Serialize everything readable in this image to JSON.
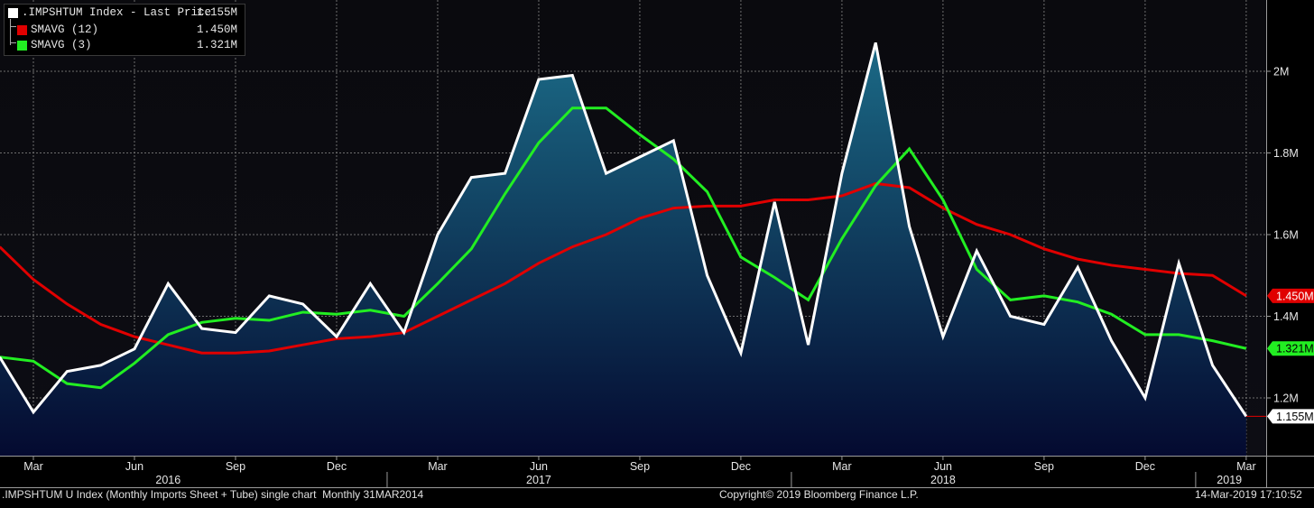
{
  "legend": [
    {
      "name": ".IMPSHTUM Index - Last Price",
      "value": "1.155M",
      "color": "#ffffff"
    },
    {
      "name": "SMAVG (12)",
      "value": "1.450M",
      "color": "#e00000"
    },
    {
      "name": "SMAVG (3)",
      "value": "1.321M",
      "color": "#22ee22"
    }
  ],
  "footer": {
    "left": ".IMPSHTUM U Index (Monthly Imports Sheet + Tube) single chart  Monthly 31MAR2014",
    "center": "Copyright© 2019 Bloomberg Finance L.P.",
    "right": "14-Mar-2019 17:10:52"
  },
  "colors": {
    "background": "#000000",
    "plot_bg": "#07070c",
    "area_top": "#1b6a86",
    "area_bottom": "#040a30",
    "grid": "#6e6e6e"
  },
  "chart_data": {
    "type": "area",
    "ylim": [
      1.1,
      2.15
    ],
    "yticks": [
      1.2,
      1.4,
      1.6,
      1.8,
      2.0
    ],
    "ytick_labels": [
      "1.2M",
      "1.4M",
      "1.6M",
      "1.8M",
      "2M"
    ],
    "month_labels": [
      "Mar",
      "Jun",
      "Sep",
      "Dec",
      "Mar",
      "Jun",
      "Sep",
      "Dec",
      "Mar",
      "Jun",
      "Sep",
      "Dec",
      "Mar"
    ],
    "month_label_index": [
      0,
      3,
      6,
      9,
      12,
      15,
      18,
      21,
      24,
      27,
      30,
      33,
      36
    ],
    "year_labels": [
      "2016",
      "2017",
      "2018",
      "2019"
    ],
    "year_label_index": [
      4,
      15,
      27,
      35.5
    ],
    "year_separator_index": [
      10.5,
      22.5,
      34.5
    ],
    "x_start_index": -1,
    "x": [
      "Feb 2016",
      "Mar 2016",
      "Apr 2016",
      "May 2016",
      "Jun 2016",
      "Jul 2016",
      "Aug 2016",
      "Sep 2016",
      "Oct 2016",
      "Nov 2016",
      "Dec 2016",
      "Jan 2017",
      "Feb 2017",
      "Mar 2017",
      "Apr 2017",
      "May 2017",
      "Jun 2017",
      "Jul 2017",
      "Aug 2017",
      "Sep 2017",
      "Oct 2017",
      "Nov 2017",
      "Dec 2017",
      "Jan 2018",
      "Feb 2018",
      "Mar 2018",
      "Apr 2018",
      "May 2018",
      "Jun 2018",
      "Jul 2018",
      "Aug 2018",
      "Sep 2018",
      "Oct 2018",
      "Nov 2018",
      "Dec 2018",
      "Jan 2019",
      "Feb 2019",
      "Mar 2019"
    ],
    "series": [
      {
        "name": ".IMPSHTUM Index - Last Price",
        "style": "area",
        "color": "#ffffff",
        "values": [
          1.3,
          1.165,
          1.265,
          1.28,
          1.32,
          1.48,
          1.37,
          1.36,
          1.45,
          1.43,
          1.35,
          1.48,
          1.36,
          1.6,
          1.74,
          1.75,
          1.98,
          1.99,
          1.75,
          1.79,
          1.83,
          1.5,
          1.31,
          1.68,
          1.33,
          1.75,
          2.07,
          1.62,
          1.35,
          1.56,
          1.4,
          1.38,
          1.52,
          1.34,
          1.2,
          1.53,
          1.28,
          1.155
        ]
      },
      {
        "name": "SMAVG (12)",
        "style": "line",
        "color": "#e00000",
        "values": [
          1.57,
          1.49,
          1.43,
          1.38,
          1.35,
          1.33,
          1.31,
          1.31,
          1.315,
          1.33,
          1.345,
          1.35,
          1.36,
          1.4,
          1.44,
          1.48,
          1.53,
          1.57,
          1.6,
          1.64,
          1.665,
          1.67,
          1.67,
          1.685,
          1.685,
          1.695,
          1.725,
          1.715,
          1.665,
          1.625,
          1.6,
          1.565,
          1.54,
          1.525,
          1.515,
          1.505,
          1.5,
          1.45
        ]
      },
      {
        "name": "SMAVG (3)",
        "style": "line",
        "color": "#22ee22",
        "values": [
          1.3,
          1.29,
          1.235,
          1.225,
          1.285,
          1.355,
          1.385,
          1.395,
          1.39,
          1.41,
          1.405,
          1.415,
          1.4,
          1.48,
          1.565,
          1.7,
          1.825,
          1.91,
          1.91,
          1.845,
          1.785,
          1.705,
          1.545,
          1.495,
          1.44,
          1.59,
          1.72,
          1.81,
          1.685,
          1.515,
          1.44,
          1.45,
          1.435,
          1.405,
          1.355,
          1.355,
          1.34,
          1.321
        ]
      }
    ],
    "last_value_labels": [
      {
        "series": 1,
        "text": "1.450M",
        "bg": "#e00000",
        "fg": "#ffffff"
      },
      {
        "series": 2,
        "text": "1.321M",
        "bg": "#22ee22",
        "fg": "#000000"
      },
      {
        "series": 0,
        "text": "1.155M",
        "bg": "#ffffff",
        "fg": "#000000"
      }
    ]
  }
}
